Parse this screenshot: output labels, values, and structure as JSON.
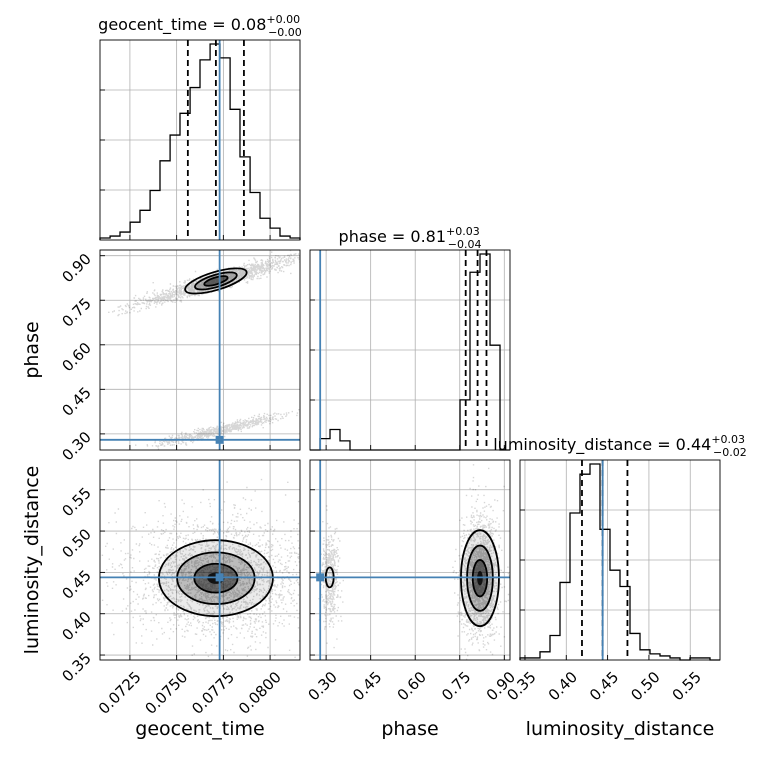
{
  "chart_data": {
    "type": "corner",
    "parameters": [
      "geocent_time",
      "phase",
      "luminosity_distance"
    ],
    "truths": {
      "geocent_time": 0.0773,
      "phase": 0.28,
      "luminosity_distance": 0.444
    },
    "titles": [
      {
        "param": "geocent_time",
        "label": "geocent_time",
        "value": "0.08",
        "plus": "+0.00",
        "minus": "−0.00"
      },
      {
        "param": "phase",
        "label": "phase",
        "value": "0.81",
        "plus": "+0.03",
        "minus": "−0.04"
      },
      {
        "param": "luminosity_distance",
        "label": "luminosity_distance",
        "value": "0.44",
        "plus": "+0.03",
        "minus": "−0.02"
      }
    ],
    "axis_labels": {
      "x": [
        "geocent_time",
        "phase",
        "luminosity_distance"
      ],
      "y": [
        "",
        "phase",
        "luminosity_distance"
      ]
    },
    "ticks": {
      "geocent_time": {
        "values": [
          0.0725,
          0.075,
          0.0775,
          0.08
        ],
        "labels": [
          "0.0725",
          "0.0750",
          "0.0775",
          "0.0800"
        ]
      },
      "phase": {
        "values": [
          0.3,
          0.45,
          0.6,
          0.75,
          0.9
        ],
        "labels": [
          "0.30",
          "0.45",
          "0.60",
          "0.75",
          "0.90"
        ]
      },
      "luminosity_distance": {
        "values": [
          0.35,
          0.4,
          0.45,
          0.5,
          0.55
        ],
        "labels": [
          "0.35",
          "0.40",
          "0.45",
          "0.50",
          "0.55"
        ]
      }
    },
    "ranges": {
      "geocent_time": [
        0.0709,
        0.0816
      ],
      "phase": [
        0.2457,
        0.9192
      ],
      "luminosity_distance": [
        0.344,
        0.586
      ]
    },
    "histograms": {
      "geocent_time": {
        "edges": [
          0.0709,
          0.07144,
          0.07197,
          0.07251,
          0.07304,
          0.07358,
          0.07411,
          0.07465,
          0.07518,
          0.07572,
          0.07625,
          0.07679,
          0.07732,
          0.07786,
          0.07839,
          0.07893,
          0.07946,
          0.08,
          0.08053,
          0.08107,
          0.0816
        ],
        "counts": [
          0.01,
          0.02,
          0.04,
          0.09,
          0.15,
          0.25,
          0.4,
          0.53,
          0.64,
          0.77,
          0.91,
          0.99,
          0.92,
          0.66,
          0.42,
          0.24,
          0.11,
          0.06,
          0.02,
          0.01
        ]
      },
      "phase": {
        "edges": [
          0.2457,
          0.2794,
          0.3131,
          0.3467,
          0.3804,
          0.4141,
          0.4478,
          0.4815,
          0.5151,
          0.5488,
          0.5825,
          0.6162,
          0.6498,
          0.6835,
          0.7172,
          0.7509,
          0.7845,
          0.8182,
          0.8519,
          0.8856,
          0.9192
        ],
        "counts": [
          0.0,
          0.05,
          0.09,
          0.04,
          0.0,
          0.0,
          0.0,
          0.0,
          0.0,
          0.0,
          0.0,
          0.0,
          0.0,
          0.0,
          0.0,
          0.22,
          0.78,
          0.86,
          0.46,
          0.0
        ]
      },
      "luminosity_distance": {
        "edges": [
          0.344,
          0.3561,
          0.3682,
          0.3803,
          0.3924,
          0.4045,
          0.4166,
          0.4287,
          0.4408,
          0.4529,
          0.465,
          0.4771,
          0.4892,
          0.5013,
          0.5134,
          0.5255,
          0.5376,
          0.5497,
          0.5618,
          0.5739,
          0.586
        ],
        "counts": [
          0.01,
          0.01,
          0.04,
          0.12,
          0.38,
          0.72,
          0.91,
          0.96,
          0.64,
          0.44,
          0.36,
          0.13,
          0.05,
          0.03,
          0.02,
          0.01,
          0.0,
          0.01,
          0.01,
          0.0
        ]
      }
    },
    "quantiles": {
      "geocent_time": [
        0.0756,
        0.0771,
        0.0786
      ],
      "phase": [
        0.77,
        0.81,
        0.84
      ],
      "luminosity_distance": [
        0.419,
        0.444,
        0.474
      ]
    },
    "grid": true
  }
}
